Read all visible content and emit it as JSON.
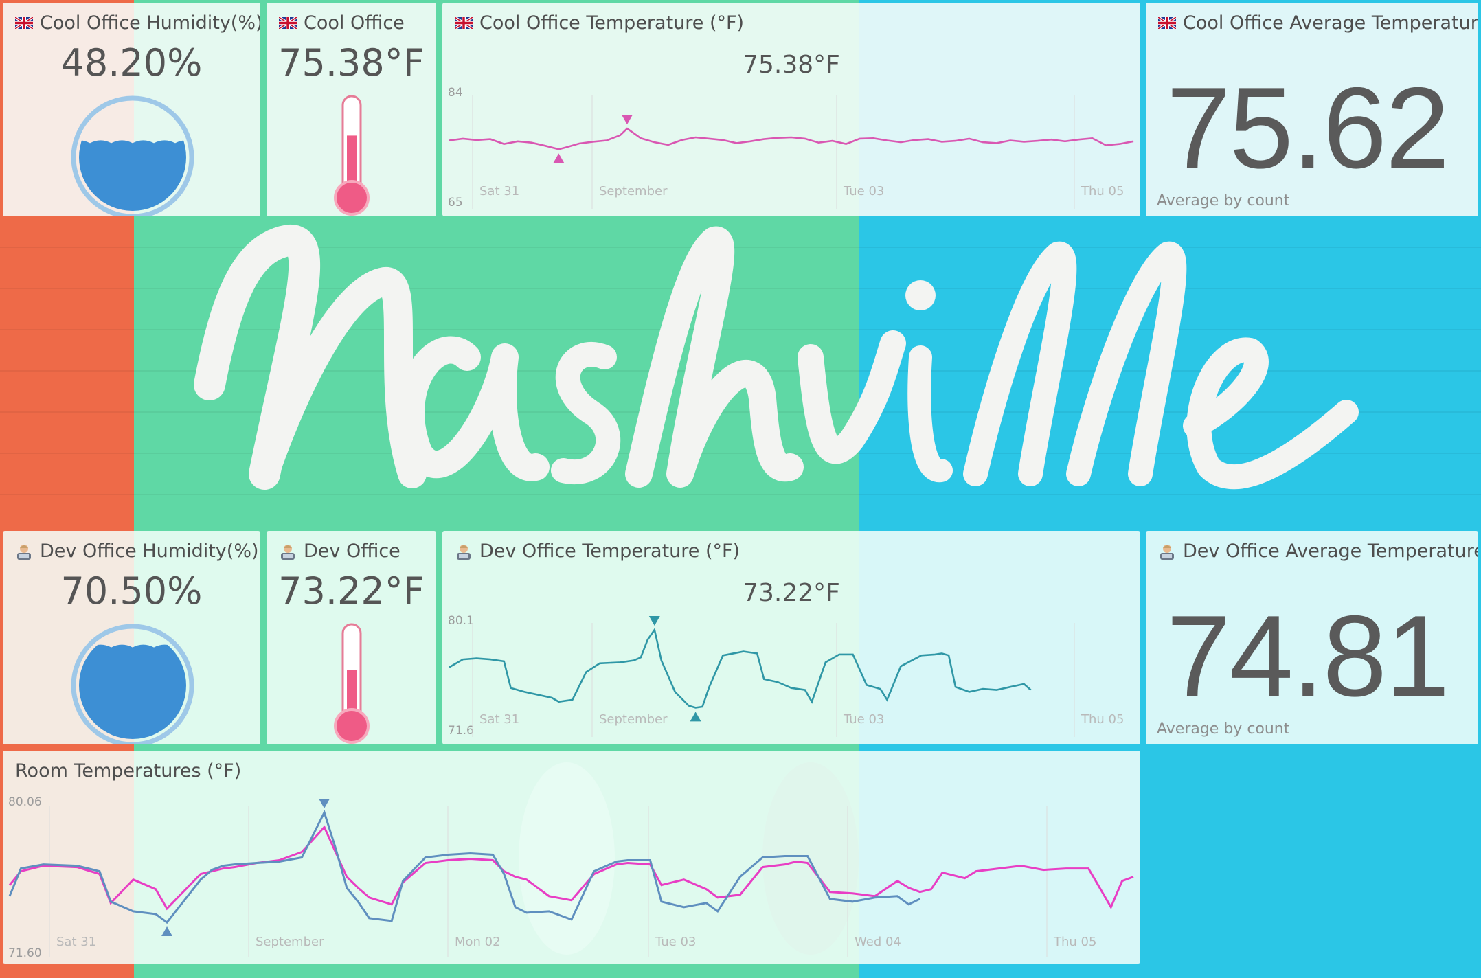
{
  "background": {
    "mural_text": "Nashville",
    "colors": {
      "orange": "#ee6a48",
      "green": "#5fd8a5",
      "blue": "#2bc6e6",
      "lettering": "#f3f4f2"
    }
  },
  "colors": {
    "cool_line": "#d957b2",
    "dev_line": "#2f97a6",
    "room_cool": "#e83ec4",
    "room_dev": "#5f8fbf"
  },
  "cool_humidity": {
    "icon": "uk-flag-icon",
    "title": "Cool Office Humidity(%)",
    "value": "48.20%",
    "fill_fraction": 0.482
  },
  "cool_temp": {
    "icon": "uk-flag-icon",
    "title": "Cool Office",
    "value": "75.38°F",
    "level_fraction": 0.62
  },
  "cool_chart": {
    "icon": "uk-flag-icon",
    "title": "Cool Office Temperature (°F)",
    "current": "75.38°F",
    "ymax_label": "84",
    "ymin_label": "65",
    "x_ticks": [
      "Sat 31",
      "September",
      "Tue 03",
      "Thu 05"
    ]
  },
  "cool_avg": {
    "icon": "uk-flag-icon",
    "title": "Cool Office Average Temperature",
    "value": "75.62",
    "caption": "Average by count"
  },
  "dev_humidity": {
    "icon": "technologist-icon",
    "title": "Dev Office Humidity(%)",
    "value": "70.50%",
    "fill_fraction": 0.705
  },
  "dev_temp": {
    "icon": "technologist-icon",
    "title": "Dev Office",
    "value": "73.22°F",
    "level_fraction": 0.55
  },
  "dev_chart": {
    "icon": "technologist-icon",
    "title": "Dev Office Temperature (°F)",
    "current": "73.22°F",
    "ymax_label": "80.1",
    "ymin_label": "71.6",
    "x_ticks": [
      "Sat 31",
      "September",
      "Tue 03",
      "Thu 05"
    ]
  },
  "dev_avg": {
    "icon": "technologist-icon",
    "title": "Dev Office Average Temperature",
    "value": "74.81",
    "caption": "Average by count"
  },
  "room_chart": {
    "title": "Room Temperatures (°F)",
    "ymax_label": "80.06",
    "ymin_label": "71.60",
    "x_ticks": [
      "Sat 31",
      "September",
      "Mon 02",
      "Tue 03",
      "Wed 04",
      "Thu 05"
    ]
  },
  "chart_data": [
    {
      "type": "line",
      "title": "Cool Office Temperature (°F)",
      "ylim": [
        65,
        84
      ],
      "x": [
        0,
        2,
        4,
        6,
        8,
        10,
        12,
        14,
        16,
        17,
        19,
        21,
        23,
        25,
        26,
        28,
        30,
        32,
        34,
        36,
        38,
        40,
        42,
        44,
        46,
        48,
        50,
        52,
        54,
        56,
        58,
        60,
        62,
        64,
        66,
        68,
        70,
        72,
        74,
        76,
        78,
        80,
        82,
        84,
        86,
        88,
        90,
        92,
        94,
        96,
        98,
        100
      ],
      "series": [
        {
          "name": "Cool Office",
          "values": [
            75.2,
            75.6,
            75.3,
            75.5,
            74.4,
            75.0,
            74.7,
            74.0,
            73.2,
            73.6,
            74.5,
            74.9,
            75.2,
            76.4,
            77.9,
            75.7,
            74.8,
            74.2,
            75.3,
            75.9,
            75.6,
            75.3,
            74.6,
            75.0,
            75.5,
            75.8,
            75.9,
            75.6,
            74.7,
            75.1,
            74.4,
            75.6,
            75.7,
            75.2,
            74.8,
            75.3,
            75.5,
            74.9,
            75.1,
            75.6,
            74.8,
            74.6,
            75.2,
            74.9,
            75.1,
            75.4,
            75.0,
            75.4,
            75.7,
            74.1,
            74.4,
            75.0
          ]
        }
      ]
    },
    {
      "type": "line",
      "title": "Dev Office Temperature (°F)",
      "ylim": [
        71.6,
        80.1
      ],
      "x": [
        0,
        2,
        4,
        6,
        8,
        9,
        11,
        13,
        15,
        16,
        17,
        18,
        20,
        22,
        25,
        27,
        28,
        29,
        30,
        31,
        33,
        35,
        36,
        37,
        38,
        40,
        43,
        44,
        45,
        46,
        48,
        50,
        52,
        53,
        55,
        57,
        58,
        59,
        61,
        63,
        64,
        66,
        69,
        71,
        72,
        73,
        74,
        76,
        78,
        80,
        82,
        84,
        85
      ],
      "series": [
        {
          "name": "Dev Office",
          "values": [
            76.3,
            77.1,
            77.2,
            77.1,
            76.9,
            74.2,
            73.8,
            73.5,
            73.2,
            72.8,
            72.9,
            73.0,
            75.8,
            76.7,
            76.8,
            77.0,
            77.3,
            79.1,
            80.1,
            77.0,
            73.8,
            72.4,
            72.2,
            72.3,
            74.3,
            77.5,
            77.9,
            77.8,
            77.7,
            75.1,
            74.8,
            74.2,
            74.0,
            72.8,
            76.8,
            77.6,
            77.6,
            77.6,
            74.5,
            74.1,
            73.0,
            76.4,
            77.5,
            77.6,
            77.7,
            77.5,
            74.3,
            73.8,
            74.1,
            74.0,
            74.3,
            74.6,
            74.0
          ]
        }
      ]
    },
    {
      "type": "line",
      "title": "Room Temperatures (°F)",
      "ylim": [
        71.6,
        80.06
      ],
      "x": [
        0,
        1,
        3,
        6,
        8,
        9,
        11,
        13,
        14,
        17,
        18,
        19,
        20,
        22,
        24,
        26,
        28,
        29,
        30,
        31,
        32,
        34,
        35,
        37,
        39,
        41,
        43,
        44,
        45,
        46,
        48,
        50,
        52,
        54,
        55,
        57,
        58,
        60,
        62,
        63,
        65,
        67,
        69,
        70,
        71,
        73,
        75,
        77,
        79,
        80,
        81,
        82,
        83,
        84,
        85,
        86,
        88,
        90,
        92,
        94,
        96,
        98,
        99,
        100
      ],
      "series": [
        {
          "name": "Cool Office",
          "values": [
            74.8,
            75.8,
            76.2,
            76.1,
            75.6,
            73.5,
            75.2,
            74.5,
            73.1,
            75.6,
            75.8,
            76.0,
            76.1,
            76.4,
            76.6,
            77.2,
            79.0,
            77.2,
            75.4,
            74.6,
            73.9,
            73.4,
            75.0,
            76.4,
            76.6,
            76.7,
            76.6,
            75.8,
            75.4,
            75.2,
            74.0,
            73.7,
            75.6,
            76.3,
            76.4,
            76.3,
            74.8,
            75.2,
            74.5,
            73.9,
            74.1,
            76.1,
            76.3,
            76.5,
            76.4,
            74.3,
            74.2,
            74.0,
            75.1,
            74.6,
            74.3,
            74.5,
            75.7,
            75.5,
            75.3,
            75.8,
            76.0,
            76.2,
            75.9,
            76.0,
            76.0,
            73.2,
            75.1,
            75.4
          ]
        },
        {
          "name": "Dev Office",
          "values": [
            74.0,
            76.0,
            76.3,
            76.2,
            75.8,
            73.6,
            72.9,
            72.7,
            72.1,
            75.2,
            75.9,
            76.2,
            76.3,
            76.4,
            76.5,
            76.8,
            80.06,
            77.5,
            74.6,
            73.6,
            72.4,
            72.2,
            75.1,
            76.8,
            77.0,
            77.1,
            77.0,
            75.6,
            73.2,
            72.8,
            72.9,
            72.3,
            75.8,
            76.5,
            76.6,
            76.6,
            73.6,
            73.2,
            73.5,
            72.9,
            75.4,
            76.8,
            76.9,
            76.9,
            76.9,
            73.8,
            73.6,
            73.9,
            74.0,
            73.4,
            73.8,
            null,
            null,
            null,
            null,
            null,
            null,
            null,
            null,
            null,
            null,
            null,
            null,
            null
          ]
        }
      ]
    }
  ]
}
